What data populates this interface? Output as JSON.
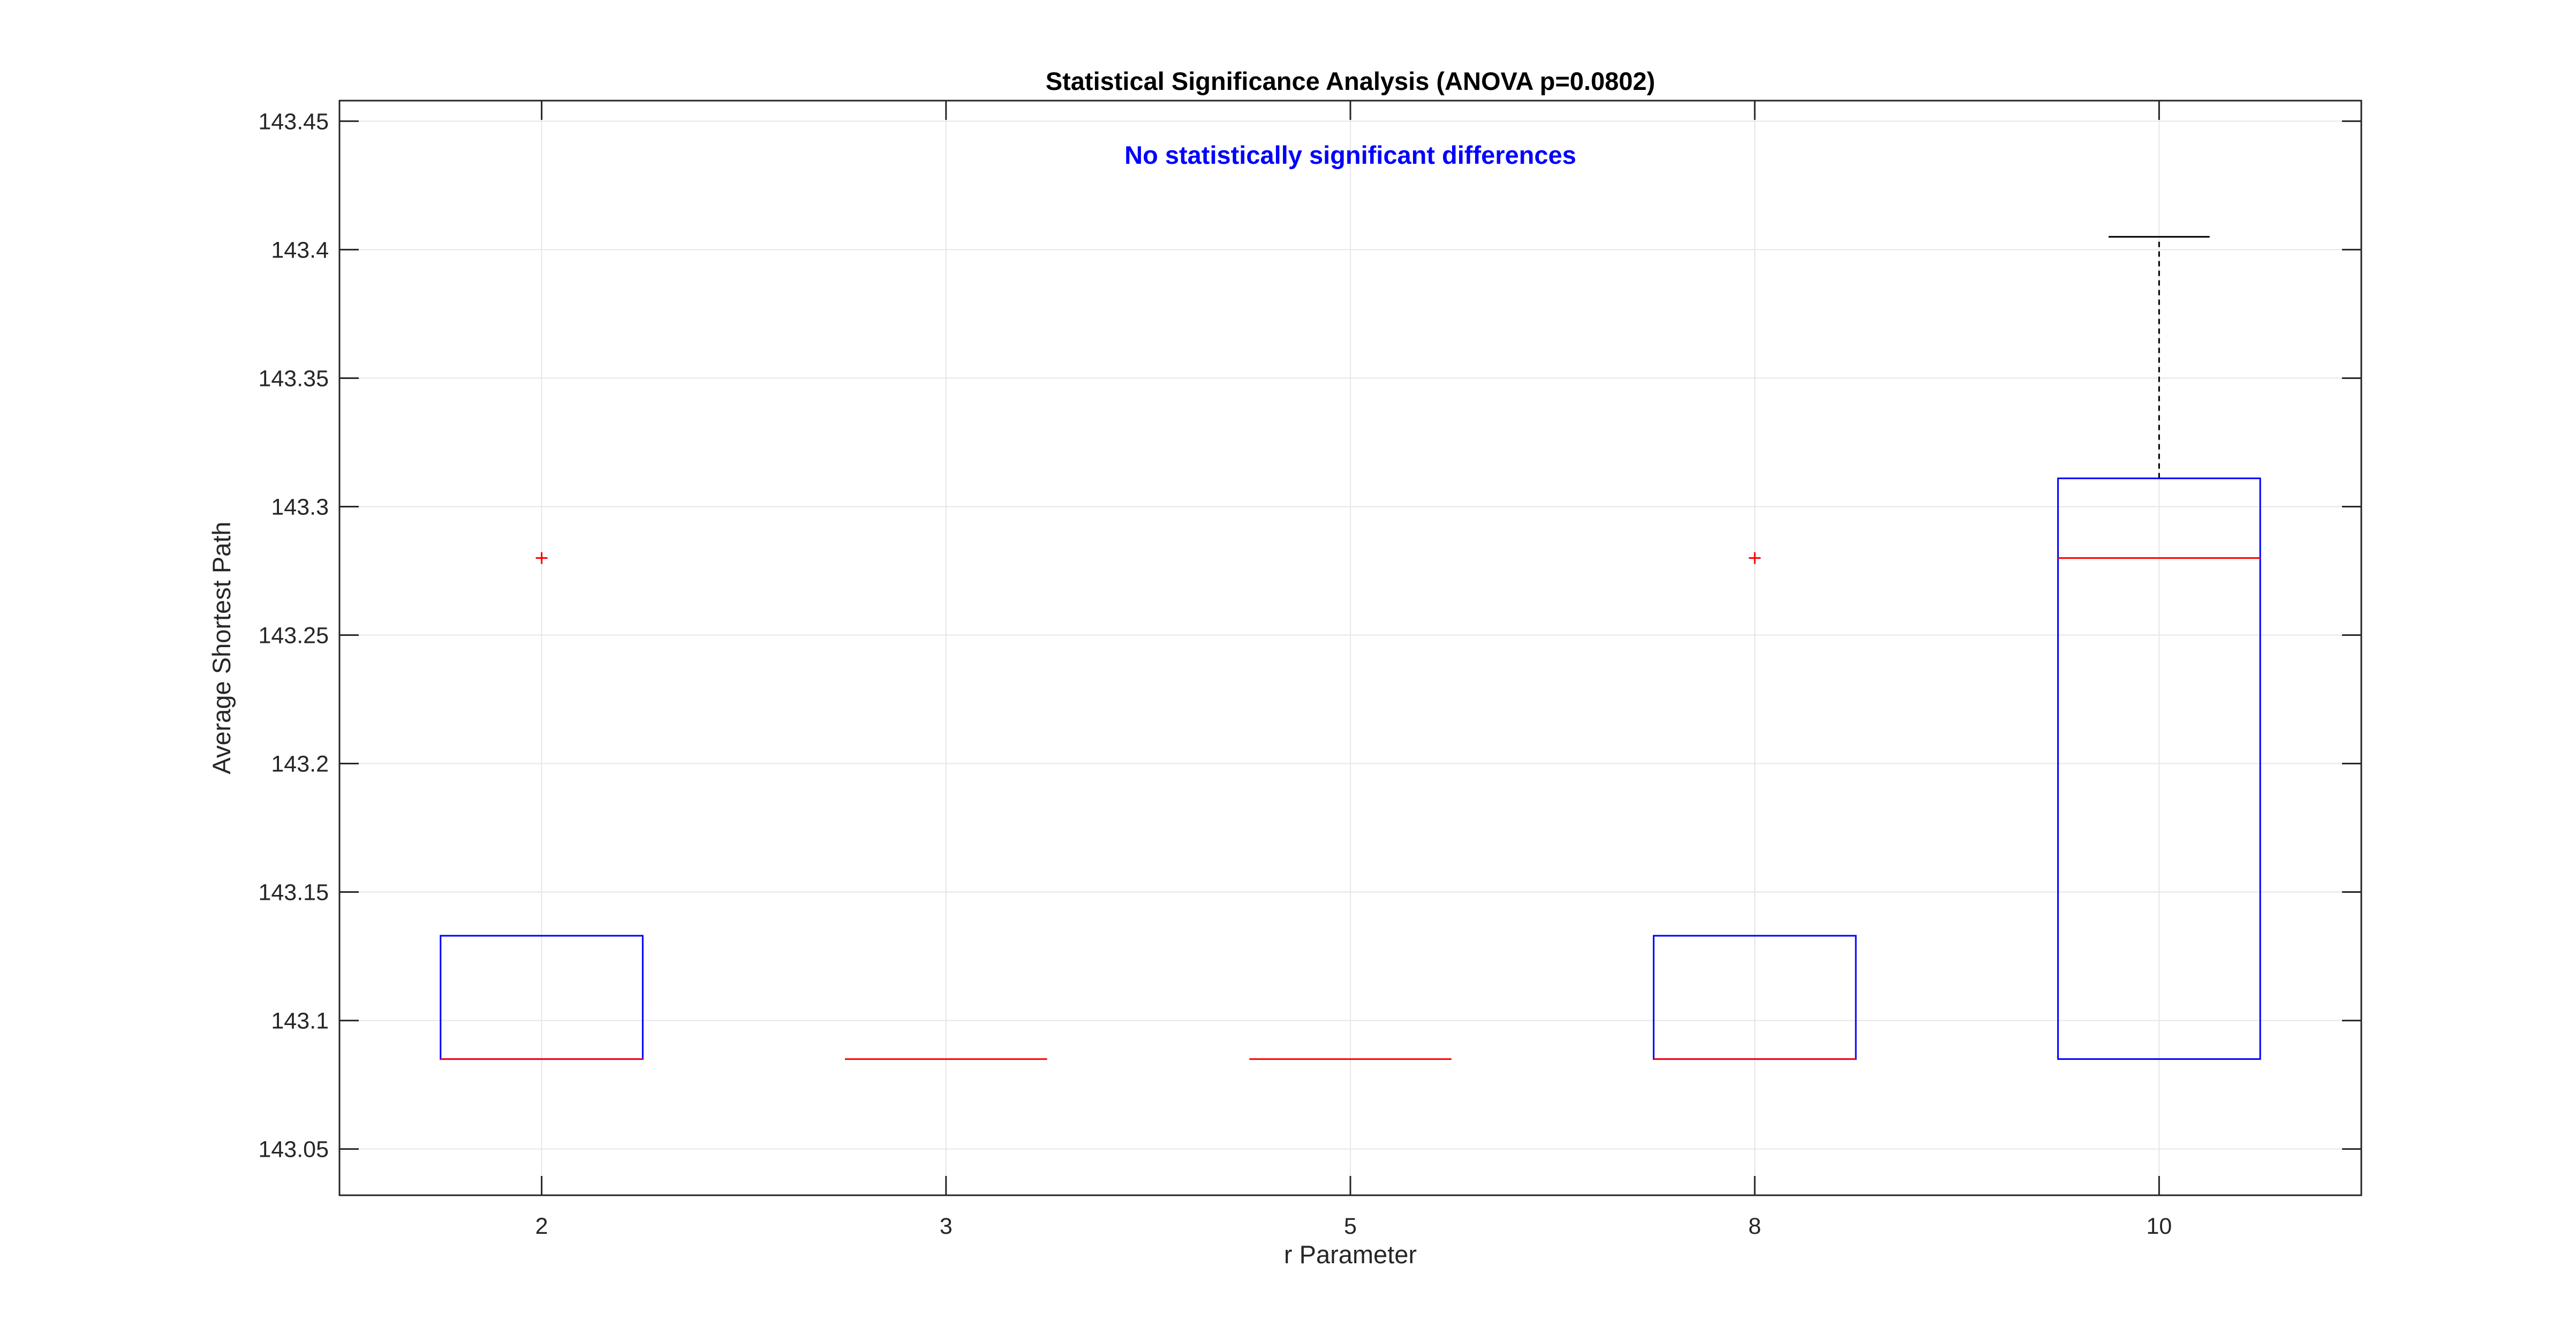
{
  "chart_data": {
    "type": "box",
    "title": "Statistical Significance Analysis (ANOVA p=0.0802)",
    "annotation": "No statistically significant differences",
    "xlabel": "r Parameter",
    "ylabel": "Average Shortest Path",
    "categories": [
      "2",
      "3",
      "5",
      "8",
      "10"
    ],
    "ylim": [
      143.032,
      143.458
    ],
    "yticks": [
      143.05,
      143.1,
      143.15,
      143.2,
      143.25,
      143.3,
      143.35,
      143.4,
      143.45
    ],
    "ytick_labels": [
      "143.05",
      "143.1",
      "143.15",
      "143.2",
      "143.25",
      "143.3",
      "143.35",
      "143.4",
      "143.45"
    ],
    "grid": true,
    "boxes": [
      {
        "category": "2",
        "q1": 143.085,
        "median": 143.085,
        "q3": 143.133,
        "whisker_low": 143.085,
        "whisker_high": 143.133,
        "outliers": [
          143.28
        ]
      },
      {
        "category": "3",
        "q1": 143.085,
        "median": 143.085,
        "q3": 143.085,
        "whisker_low": 143.085,
        "whisker_high": 143.085,
        "outliers": []
      },
      {
        "category": "5",
        "q1": 143.085,
        "median": 143.085,
        "q3": 143.085,
        "whisker_low": 143.085,
        "whisker_high": 143.085,
        "outliers": []
      },
      {
        "category": "8",
        "q1": 143.085,
        "median": 143.085,
        "q3": 143.133,
        "whisker_low": 143.085,
        "whisker_high": 143.133,
        "outliers": [
          143.28
        ]
      },
      {
        "category": "10",
        "q1": 143.085,
        "median": 143.28,
        "q3": 143.311,
        "whisker_low": 143.085,
        "whisker_high": 143.405,
        "outliers": []
      }
    ],
    "colors": {
      "box": "#0000ff",
      "median": "#ff0000",
      "outlier": "#ff0000",
      "whisker": "#000000",
      "grid": "#e6e6e6",
      "axes": "#262626",
      "annotation": "#0000ff",
      "text": "#000000"
    }
  }
}
